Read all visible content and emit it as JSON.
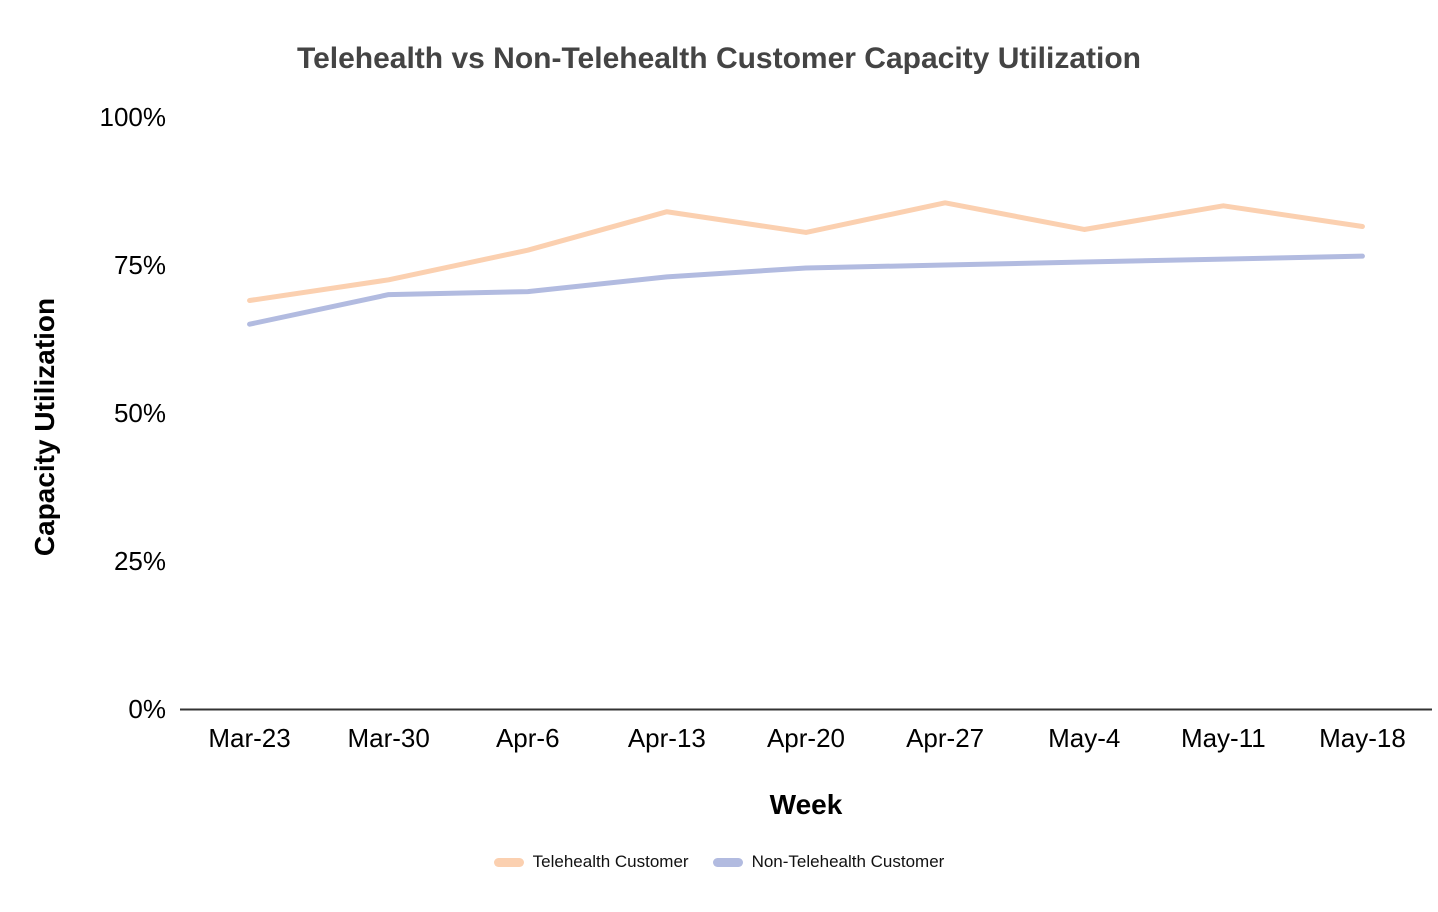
{
  "chart": {
    "title": "Telehealth vs Non-Telehealth Customer Capacity Utilization",
    "x_axis": {
      "title": "Week"
    },
    "y_axis": {
      "title": "Capacity Utilization",
      "tick_labels": [
        "100%",
        "75%",
        "50%",
        "25%",
        "0%"
      ]
    }
  },
  "chart_data": {
    "type": "line",
    "title": "Telehealth vs Non-Telehealth Customer Capacity Utilization",
    "xlabel": "Week",
    "ylabel": "Capacity Utilization",
    "categories": [
      "Mar-23",
      "Mar-30",
      "Apr-6",
      "Apr-13",
      "Apr-20",
      "Apr-27",
      "May-4",
      "May-11",
      "May-18"
    ],
    "series": [
      {
        "name": "Telehealth Customer",
        "color": "#FBD0B0",
        "values": [
          69,
          72.5,
          77.5,
          84,
          80.5,
          85.5,
          81,
          85,
          81.5
        ]
      },
      {
        "name": "Non-Telehealth Customer",
        "color": "#B2BBE0",
        "values": [
          65,
          70,
          70.5,
          73,
          74.5,
          75,
          75.5,
          76,
          76.5
        ]
      }
    ],
    "value_unit": "percent",
    "ylim": [
      0,
      100
    ],
    "yticks": [
      100,
      75,
      50,
      25,
      0
    ],
    "grid": false,
    "legend_position": "bottom"
  },
  "style": {
    "title_color": "#444444",
    "tick_label_color": "#000000",
    "axis_line_color": "#333333",
    "background": "#ffffff"
  }
}
